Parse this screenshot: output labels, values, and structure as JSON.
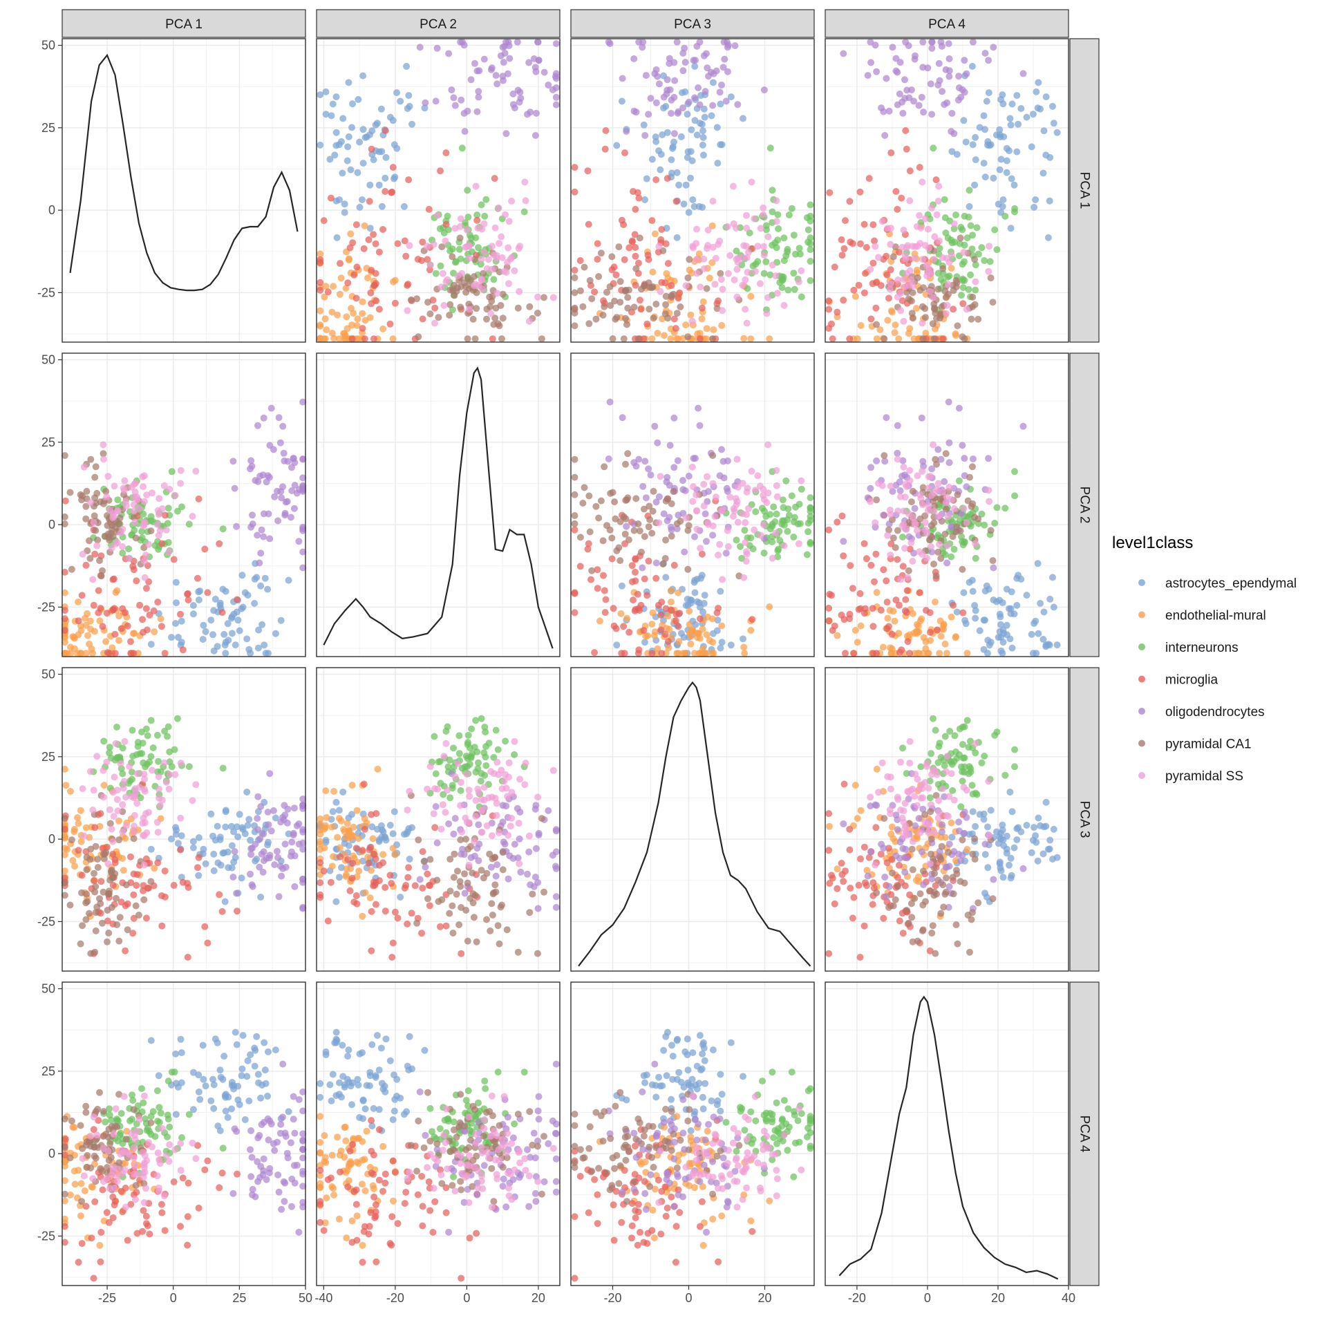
{
  "chart_data": {
    "type": "scatter",
    "title": "",
    "variables": [
      "PCA 1",
      "PCA 2",
      "PCA 3",
      "PCA 4"
    ],
    "x_ranges": [
      [
        -42,
        50
      ],
      [
        -42,
        26
      ],
      [
        -31,
        33
      ],
      [
        -29,
        40
      ]
    ],
    "y_range": [
      -40,
      52
    ],
    "x_ticks": [
      {
        "values": [
          -25,
          0,
          25,
          50
        ],
        "labels": [
          "-25",
          "0",
          "25",
          "50"
        ]
      },
      {
        "values": [
          -40,
          -20,
          0,
          20
        ],
        "labels": [
          "-40",
          "-20",
          "0",
          "20"
        ]
      },
      {
        "values": [
          -20,
          0,
          20
        ],
        "labels": [
          "-20",
          "0",
          "20"
        ]
      },
      {
        "values": [
          -20,
          0,
          20,
          40
        ],
        "labels": [
          "-20",
          "0",
          "20",
          "40"
        ]
      }
    ],
    "y_ticks": {
      "values": [
        -25,
        0,
        25,
        50
      ],
      "labels": [
        "-25",
        "0",
        "25",
        "50"
      ]
    },
    "grid": true,
    "legend": {
      "title": "level1class",
      "position": "right",
      "entries": [
        {
          "name": "astrocytes_ependymal",
          "color": "#7ba3d4"
        },
        {
          "name": "endothelial-mural",
          "color": "#fba04b"
        },
        {
          "name": "interneurons",
          "color": "#6cc25e"
        },
        {
          "name": "microglia",
          "color": "#e6605a"
        },
        {
          "name": "oligodendrocytes",
          "color": "#ae86d0"
        },
        {
          "name": "pyramidal CA1",
          "color": "#a87a6c"
        },
        {
          "name": "pyramidal SS",
          "color": "#f19fd6"
        }
      ]
    },
    "diagonal_densities": [
      {
        "variable": "PCA 1",
        "x": [
          -39,
          -35,
          -31,
          -28,
          -25,
          -22,
          -19,
          -16,
          -13,
          -10,
          -7,
          -4,
          -1,
          2,
          5,
          8,
          11,
          14,
          17,
          20,
          23,
          26,
          29,
          32,
          35,
          38,
          41,
          44,
          47
        ],
        "y": [
          -19,
          3,
          33,
          44,
          47,
          41,
          26,
          10,
          -4,
          -13,
          -19,
          -22,
          -23.5,
          -24,
          -24.3,
          -24.3,
          -24,
          -22.5,
          -19.5,
          -14.5,
          -9,
          -5.5,
          -5,
          -5,
          -2,
          7,
          11.5,
          6,
          -6.5
        ]
      },
      {
        "variable": "PCA 2",
        "x": [
          -40,
          -37,
          -34,
          -31,
          -29,
          -27,
          -24,
          -21,
          -18,
          -15,
          -11,
          -7,
          -4,
          -2,
          0,
          2,
          3,
          4,
          6,
          8,
          10,
          12,
          14,
          16,
          18,
          20,
          24
        ],
        "y": [
          -36.5,
          -30,
          -26,
          -22.5,
          -25,
          -28,
          -30,
          -32.5,
          -34.5,
          -34,
          -33,
          -28,
          -12,
          15,
          34,
          46,
          47.5,
          44,
          18,
          -7.5,
          -8,
          -1.5,
          -3,
          -3,
          -12,
          -25,
          -37.5
        ]
      },
      {
        "variable": "PCA 3",
        "x": [
          -29,
          -26,
          -23,
          -20,
          -17,
          -14,
          -11,
          -8,
          -6,
          -4,
          -2,
          0,
          1,
          2,
          3,
          5,
          7,
          9,
          11,
          13,
          15,
          18,
          21,
          24,
          27,
          30,
          32
        ],
        "y": [
          -38.5,
          -34,
          -29,
          -26,
          -21,
          -13,
          -4,
          11,
          25,
          37,
          42,
          46,
          47.5,
          46,
          42,
          25,
          8,
          -4,
          -11,
          -12.5,
          -15,
          -22,
          -27,
          -28,
          -32,
          -36,
          -38.5
        ]
      },
      {
        "variable": "PCA 4",
        "x": [
          -25,
          -22,
          -19,
          -16,
          -13,
          -10,
          -8,
          -6,
          -4,
          -2,
          -1,
          0,
          2,
          4,
          6,
          8,
          10,
          13,
          16,
          19,
          22,
          25,
          28,
          31,
          34,
          37
        ],
        "y": [
          -37,
          -33.5,
          -32,
          -29,
          -18,
          0,
          12,
          20,
          36,
          46,
          47.5,
          46,
          36,
          22,
          7,
          -6,
          -16,
          -24,
          -28.5,
          -31.5,
          -33.5,
          -34.5,
          -36,
          -35.5,
          -36.5,
          -38
        ]
      }
    ],
    "series": [
      {
        "name": "astrocytes_ependymal",
        "centroid": [
          20,
          -28,
          -2,
          22
        ],
        "spread": [
          14,
          7,
          8,
          7
        ]
      },
      {
        "name": "endothelial-mural",
        "centroid": [
          -30,
          -33,
          -1,
          -5
        ],
        "spread": [
          10,
          6,
          9,
          8
        ]
      },
      {
        "name": "interneurons",
        "centroid": [
          -12,
          0,
          24,
          8
        ],
        "spread": [
          8,
          6,
          6,
          6
        ]
      },
      {
        "name": "microglia",
        "centroid": [
          -12,
          -20,
          -12,
          -10
        ],
        "spread": [
          16,
          12,
          10,
          10
        ]
      },
      {
        "name": "oligodendrocytes",
        "centroid": [
          40,
          10,
          -2,
          0
        ],
        "spread": [
          8,
          10,
          9,
          9
        ]
      },
      {
        "name": "pyramidal CA1",
        "centroid": [
          -28,
          1,
          -15,
          3
        ],
        "spread": [
          7,
          8,
          10,
          6
        ]
      },
      {
        "name": "pyramidal SS",
        "centroid": [
          -15,
          4,
          12,
          -2
        ],
        "spread": [
          9,
          8,
          9,
          7
        ]
      }
    ]
  }
}
